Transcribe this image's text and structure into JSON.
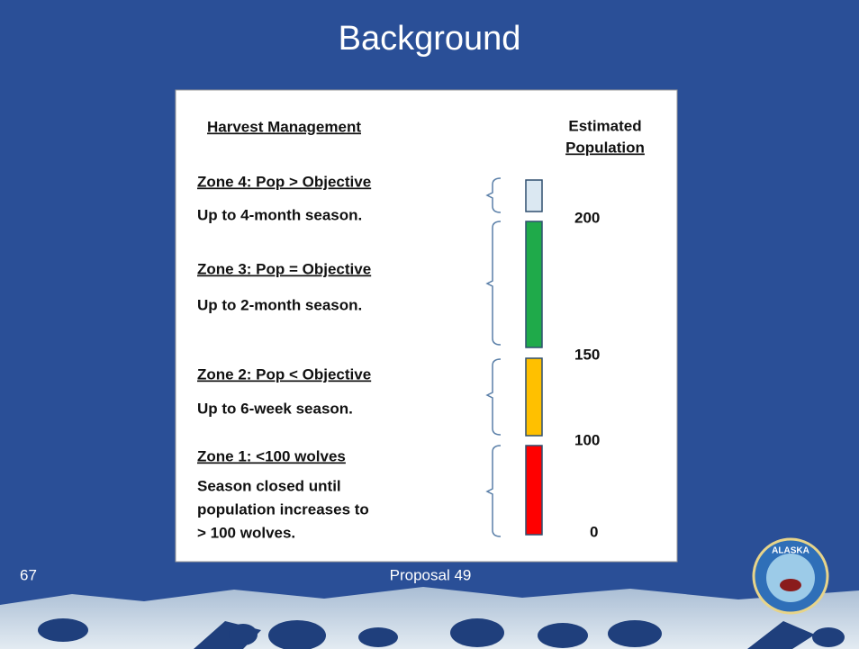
{
  "title": "Background",
  "panel": {
    "heading": "Harvest Management",
    "column_heading": [
      "Estimated",
      "Population"
    ],
    "zones": [
      {
        "title": "Zone 4: Pop > Objective",
        "lines": [
          "Up to 4-month season."
        ]
      },
      {
        "title": "Zone 3: Pop = Objective",
        "lines": [
          "Up to 2-month season."
        ]
      },
      {
        "title": "Zone 2: Pop < Objective",
        "lines": [
          "Up to 6-week season."
        ]
      },
      {
        "title": "Zone 1: <100 wolves",
        "lines": [
          "Season closed until",
          "population increases to",
          "> 100 wolves."
        ]
      }
    ],
    "scale_labels": [
      "200",
      "150",
      "100",
      "0"
    ]
  },
  "footer": {
    "slide_number": "67",
    "text": "Proposal 49"
  },
  "logo": {
    "text": "ALASKA"
  }
}
